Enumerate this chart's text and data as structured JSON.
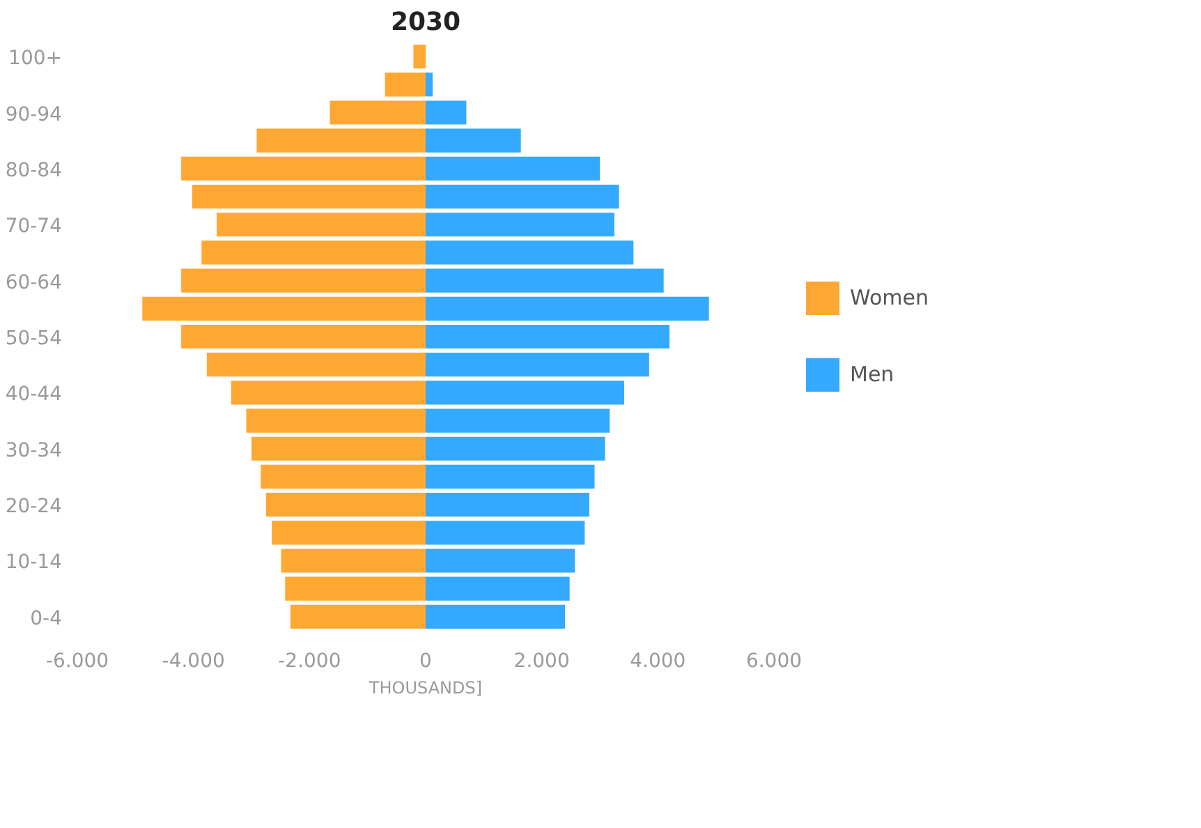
{
  "chart_data": {
    "type": "bar",
    "orientation": "horizontal",
    "stacked": true,
    "title": "2030",
    "xlabel": "THOUSANDS]",
    "categories": [
      "100+",
      null,
      "90-94",
      null,
      "80-84",
      null,
      "70-74",
      null,
      "60-64",
      null,
      "50-54",
      null,
      "40-44",
      null,
      "30-34",
      null,
      "20-24",
      null,
      "10-14",
      null,
      "0-4"
    ],
    "series": [
      {
        "name": "Women",
        "color": "#ffa733",
        "values": [
          -210,
          -700,
          -1650,
          -2910,
          -4210,
          -4020,
          -3600,
          -3860,
          -4210,
          -4880,
          -4210,
          -3770,
          -3350,
          -3090,
          -3000,
          -2840,
          -2750,
          -2650,
          -2490,
          -2420,
          -2330
        ]
      },
      {
        "name": "Men",
        "color": "#33a9ff",
        "values": [
          0,
          120,
          700,
          1640,
          3000,
          3330,
          3250,
          3580,
          4100,
          4880,
          4200,
          3850,
          3420,
          3170,
          3090,
          2910,
          2820,
          2740,
          2570,
          2480,
          2400
        ]
      }
    ],
    "xlim": [
      -6000,
      6000
    ],
    "xticks": [
      {
        "value": -6000,
        "label": "-6.000"
      },
      {
        "value": -4000,
        "label": "-4.000"
      },
      {
        "value": -2000,
        "label": "-2.000"
      },
      0,
      {
        "value": 2000,
        "label": "2.000"
      },
      {
        "value": 4000,
        "label": "4.000"
      },
      {
        "value": 6000,
        "label": "6.000"
      }
    ],
    "grid": false,
    "legend": "right"
  }
}
